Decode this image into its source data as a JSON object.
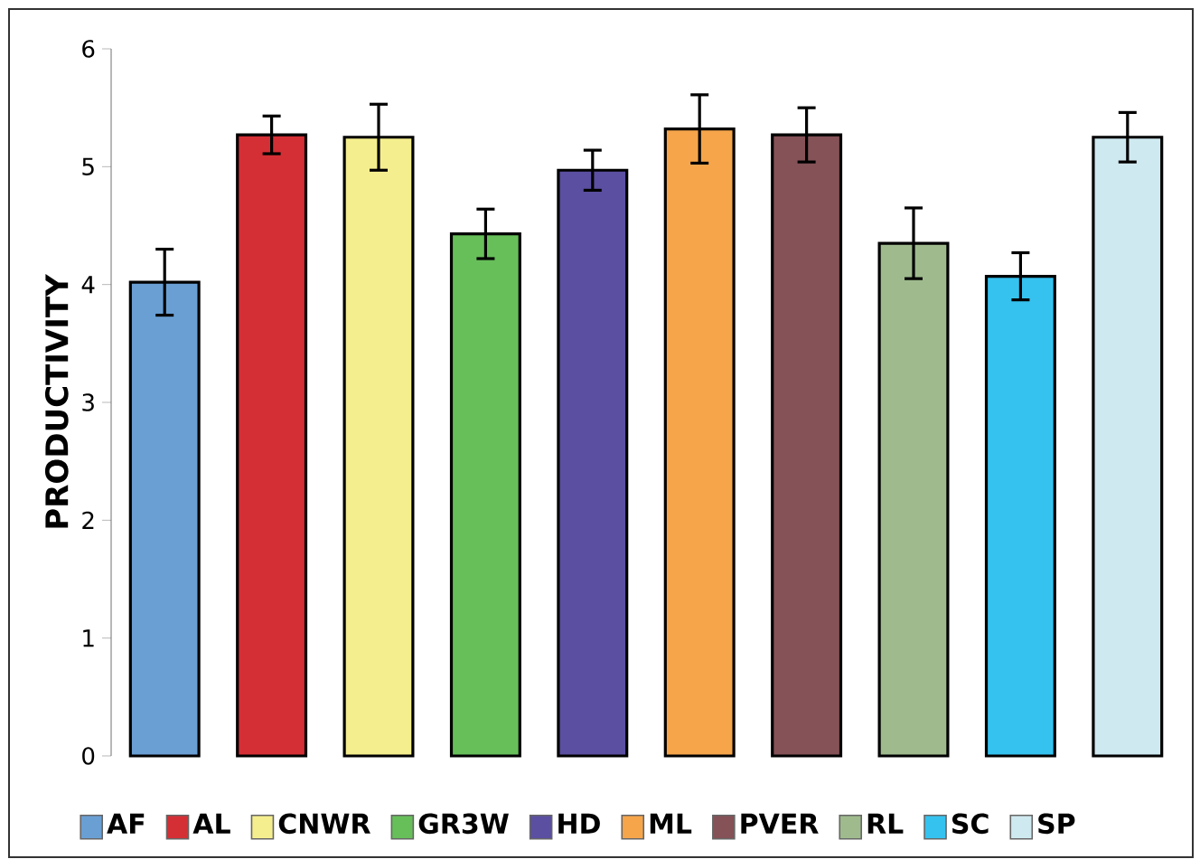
{
  "chart_data": {
    "type": "bar",
    "ylabel": "PRODUCTIVITY",
    "categories": [
      "AF",
      "AL",
      "CNWR",
      "GR3W",
      "HD",
      "ML",
      "PVER",
      "RL",
      "SC",
      "SP"
    ],
    "values": [
      4.02,
      5.27,
      5.25,
      4.43,
      4.97,
      5.32,
      5.27,
      4.35,
      4.07,
      5.25
    ],
    "errors": [
      0.28,
      0.16,
      0.28,
      0.21,
      0.17,
      0.29,
      0.23,
      0.3,
      0.2,
      0.21
    ],
    "colors": [
      "#6a9fd4",
      "#d42f35",
      "#f5ee8e",
      "#67bf5a",
      "#5a4fa0",
      "#f6a54b",
      "#845257",
      "#9fbb8e",
      "#35c2ef",
      "#cfe9f0"
    ],
    "ylim": [
      0,
      6
    ],
    "yticks": [
      0,
      1,
      2,
      3,
      4,
      5,
      6
    ],
    "tick_labels": "y",
    "grid": false
  }
}
